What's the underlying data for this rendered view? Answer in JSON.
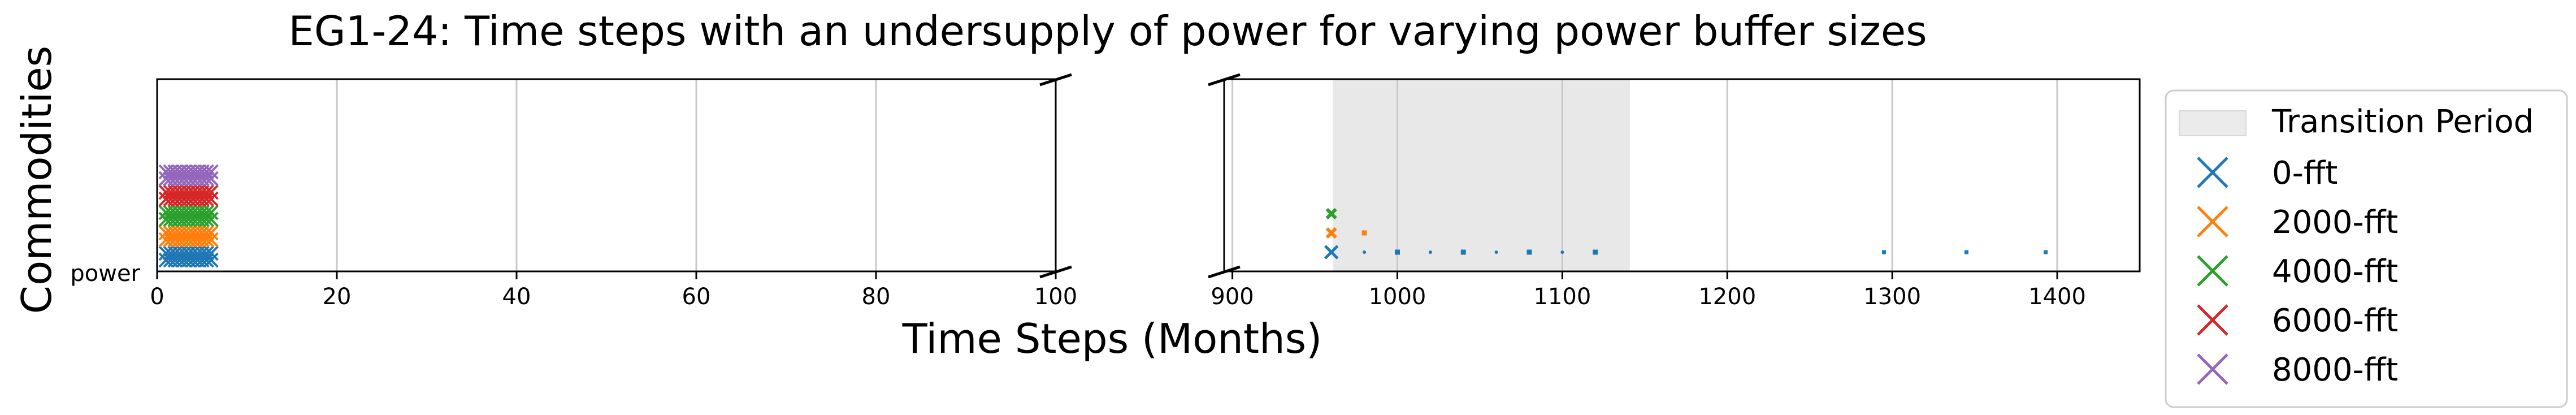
{
  "chart_data": {
    "type": "scatter",
    "title": "EG1-24: Time steps with an undersupply of power for varying power buffer sizes",
    "xlabel": "Time Steps (Months)",
    "ylabel": "Commodities",
    "ytick": "power",
    "broken_x_axis": true,
    "panels": [
      {
        "xlim": [
          0,
          100
        ],
        "xticks": [
          0,
          20,
          40,
          60,
          80,
          100
        ]
      },
      {
        "xlim": [
          895,
          1450
        ],
        "xticks": [
          900,
          1000,
          1100,
          1200,
          1300,
          1400
        ]
      }
    ],
    "grid": "x-only",
    "transition_period": {
      "label": "Transition Period",
      "range": [
        961,
        1141
      ],
      "color": "#e8e8e8"
    },
    "legend_location": "right, outside",
    "series": [
      {
        "name": "0-fft",
        "color": "#1f77b4",
        "x": [
          1,
          1.5,
          2,
          2.5,
          3,
          3.5,
          4,
          4.5,
          5,
          5.5,
          6,
          960,
          980,
          1000,
          1020,
          1040,
          1060,
          1080,
          1100,
          1120,
          1295,
          1345,
          1393
        ]
      },
      {
        "name": "2000-fft",
        "color": "#ff7f0e",
        "x": [
          1,
          1.5,
          2,
          2.5,
          3,
          3.5,
          4,
          4.5,
          5,
          5.5,
          6,
          960,
          980
        ]
      },
      {
        "name": "4000-fft",
        "color": "#2ca02c",
        "x": [
          1,
          1.5,
          2,
          2.5,
          3,
          3.5,
          4,
          4.5,
          5,
          5.5,
          6,
          960
        ]
      },
      {
        "name": "6000-fft",
        "color": "#d62728",
        "x": [
          1,
          1.5,
          2,
          2.5,
          3,
          3.5,
          4,
          4.5,
          5,
          5.5,
          6
        ]
      },
      {
        "name": "8000-fft",
        "color": "#9467bd",
        "x": [
          1,
          1.5,
          2,
          2.5,
          3,
          3.5,
          4,
          4.5,
          5,
          5.5,
          6
        ]
      }
    ]
  }
}
